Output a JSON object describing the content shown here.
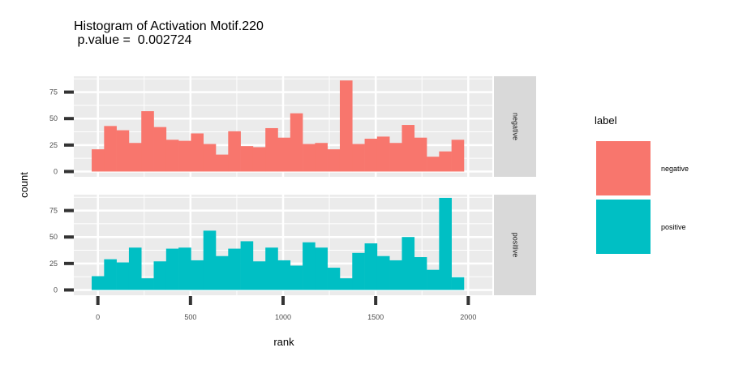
{
  "chart_data": {
    "type": "bar",
    "title_line1": "Histogram of Activation Motif.220",
    "title_line2": " p.value =  0.002724",
    "xlabel": "rank",
    "ylabel": "count",
    "xlim": [
      -130,
      2130
    ],
    "ylim": [
      -5,
      90
    ],
    "xticks": [
      0,
      500,
      1000,
      1500,
      2000
    ],
    "yticks": [
      0,
      25,
      50,
      75
    ],
    "grid": true,
    "bin_width": 67,
    "bin_start": -33.5,
    "legend": {
      "title": "label",
      "placement": "right",
      "entries": [
        "negative",
        "positive"
      ]
    },
    "colors": {
      "negative": "#F8766D",
      "positive": "#00BFC4",
      "panel_bg": "#EBEBEB",
      "strip_bg": "#D9D9D9"
    },
    "series": [
      {
        "name": "negative",
        "values": [
          21,
          43,
          39,
          27,
          57,
          42,
          30,
          29,
          36,
          26,
          16,
          38,
          24,
          23,
          41,
          32,
          55,
          26,
          27,
          21,
          86,
          26,
          31,
          33,
          27,
          44,
          32,
          14,
          19,
          30
        ]
      },
      {
        "name": "positive",
        "values": [
          13,
          29,
          26,
          40,
          11,
          27,
          39,
          40,
          28,
          56,
          32,
          39,
          46,
          27,
          40,
          28,
          23,
          45,
          40,
          21,
          11,
          35,
          44,
          32,
          28,
          50,
          31,
          19,
          87,
          12
        ]
      }
    ]
  }
}
